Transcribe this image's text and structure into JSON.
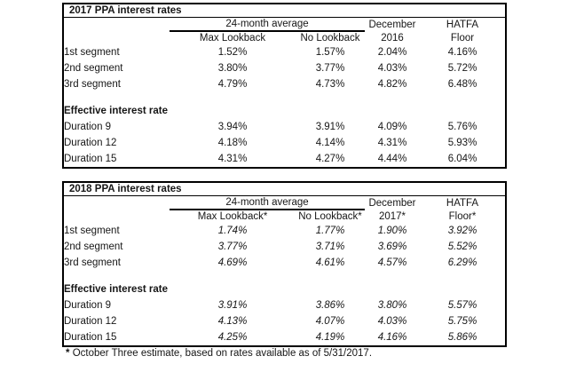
{
  "page": {
    "background": "#ffffff",
    "text_color": "#161616",
    "border_color": "#000000"
  },
  "tables": [
    {
      "title": "2017 PPA interest rates",
      "headers": {
        "group": "24-month average",
        "max_lookback": "Max Lookback",
        "no_lookback": "No Lookback",
        "december": "December",
        "year": "2016",
        "hatfa": "HATFA",
        "floor": "Floor"
      },
      "segment_rows": [
        [
          "1st segment",
          "1.52%",
          "1.57%",
          "2.04%",
          "4.16%"
        ],
        [
          "2nd segment",
          "3.80%",
          "3.77%",
          "4.03%",
          "5.72%"
        ],
        [
          "3rd segment",
          "4.79%",
          "4.73%",
          "4.82%",
          "6.48%"
        ]
      ],
      "effective_label": "Effective interest rate",
      "duration_rows": [
        [
          "Duration 9",
          "3.94%",
          "3.91%",
          "4.09%",
          "5.76%"
        ],
        [
          "Duration 12",
          "4.18%",
          "4.14%",
          "4.31%",
          "5.93%"
        ],
        [
          "Duration 15",
          "4.31%",
          "4.27%",
          "4.44%",
          "6.04%"
        ]
      ]
    },
    {
      "title": "2018 PPA interest rates",
      "headers": {
        "group": "24-month average",
        "max_lookback": "Max Lookback*",
        "no_lookback": "No Lookback*",
        "december": "December",
        "year": "2017*",
        "hatfa": "HATFA",
        "floor": "Floor*"
      },
      "segment_rows": [
        [
          "1st segment",
          "1.74%",
          "1.77%",
          "1.90%",
          "3.92%"
        ],
        [
          "2nd segment",
          "3.77%",
          "3.71%",
          "3.69%",
          "5.52%"
        ],
        [
          "3rd segment",
          "4.69%",
          "4.61%",
          "4.57%",
          "6.29%"
        ]
      ],
      "effective_label": "Effective interest rate",
      "duration_rows": [
        [
          "Duration 9",
          "3.91%",
          "3.86%",
          "3.80%",
          "5.57%"
        ],
        [
          "Duration 12",
          "4.13%",
          "4.07%",
          "4.03%",
          "5.75%"
        ],
        [
          "Duration 15",
          "4.25%",
          "4.19%",
          "4.16%",
          "5.86%"
        ]
      ]
    }
  ],
  "footnote": {
    "marker": "*",
    "text": "October Three estimate, based on rates available as of 5/31/2017."
  }
}
